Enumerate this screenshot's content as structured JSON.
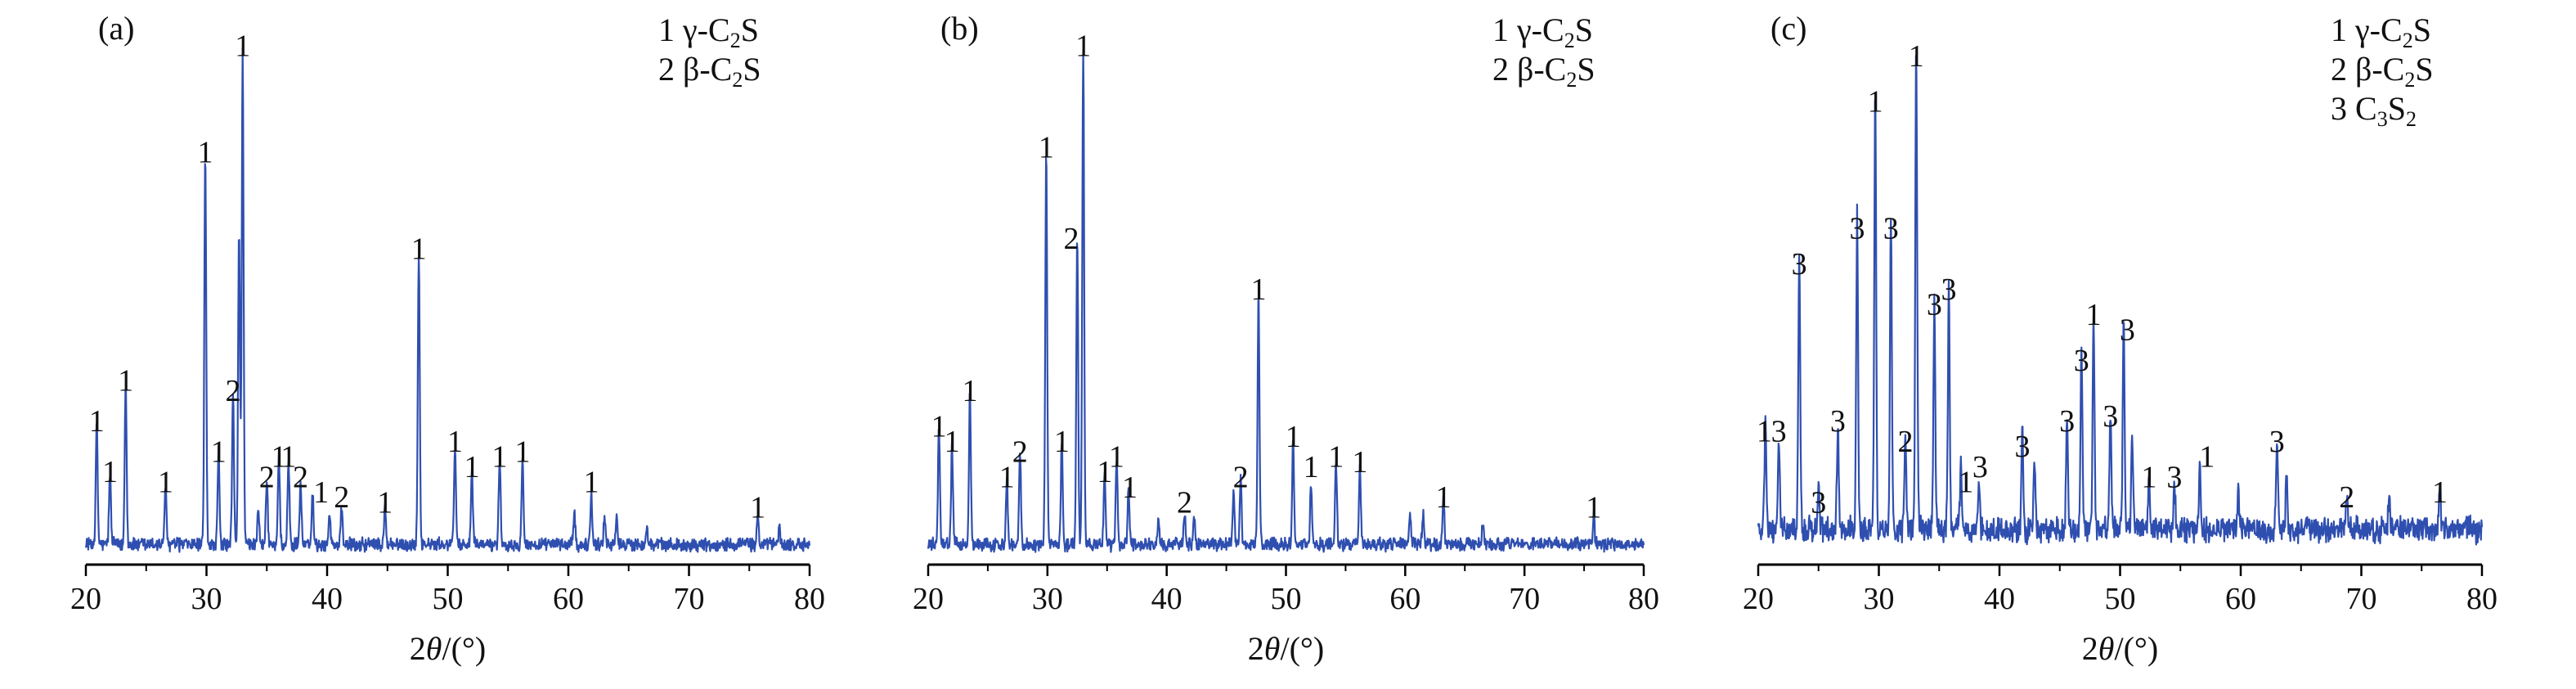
{
  "chart_data": [
    {
      "type": "line",
      "panel_label": "(a)",
      "xlabel_prefix": "2",
      "xlabel_theta": "θ",
      "xlabel_suffix": "/(°)",
      "xlim": [
        20,
        80
      ],
      "xticks": [
        "20",
        "30",
        "40",
        "50",
        "60",
        "70",
        "80"
      ],
      "legend": [
        {
          "num": "1",
          "text": "γ-C",
          "sub": "2",
          "tail": "S"
        },
        {
          "num": "2",
          "text": "β-C",
          "sub": "2",
          "tail": "S"
        }
      ],
      "color": "#2f4fb0",
      "baseline": 0.035,
      "noise": 0.018,
      "peaks": [
        {
          "x": 20.9,
          "h": 0.24
        },
        {
          "x": 22.0,
          "h": 0.14
        },
        {
          "x": 23.3,
          "h": 0.32
        },
        {
          "x": 26.6,
          "h": 0.12
        },
        {
          "x": 29.9,
          "h": 0.77
        },
        {
          "x": 31.0,
          "h": 0.18
        },
        {
          "x": 32.2,
          "h": 0.3
        },
        {
          "x": 32.7,
          "h": 0.62
        },
        {
          "x": 33.0,
          "h": 0.98
        },
        {
          "x": 34.3,
          "h": 0.08
        },
        {
          "x": 35.0,
          "h": 0.13
        },
        {
          "x": 36.0,
          "h": 0.17
        },
        {
          "x": 36.8,
          "h": 0.16
        },
        {
          "x": 37.8,
          "h": 0.12
        },
        {
          "x": 38.8,
          "h": 0.1
        },
        {
          "x": 40.2,
          "h": 0.06
        },
        {
          "x": 41.2,
          "h": 0.07
        },
        {
          "x": 44.8,
          "h": 0.07
        },
        {
          "x": 47.6,
          "h": 0.58
        },
        {
          "x": 50.6,
          "h": 0.2
        },
        {
          "x": 52.0,
          "h": 0.14
        },
        {
          "x": 54.3,
          "h": 0.17
        },
        {
          "x": 56.2,
          "h": 0.18
        },
        {
          "x": 60.5,
          "h": 0.06
        },
        {
          "x": 61.9,
          "h": 0.1
        },
        {
          "x": 63.0,
          "h": 0.06
        },
        {
          "x": 64.0,
          "h": 0.05
        },
        {
          "x": 66.5,
          "h": 0.04
        },
        {
          "x": 75.7,
          "h": 0.06
        },
        {
          "x": 77.5,
          "h": 0.03
        }
      ],
      "annotations": [
        {
          "x": 20.9,
          "h": 0.24,
          "label": "1"
        },
        {
          "x": 22.0,
          "h": 0.14,
          "label": "1"
        },
        {
          "x": 23.3,
          "h": 0.32,
          "label": "1"
        },
        {
          "x": 26.6,
          "h": 0.12,
          "label": "1"
        },
        {
          "x": 29.9,
          "h": 0.77,
          "label": "1"
        },
        {
          "x": 31.0,
          "h": 0.18,
          "label": "1"
        },
        {
          "x": 32.2,
          "h": 0.3,
          "label": "2"
        },
        {
          "x": 33.0,
          "h": 0.98,
          "label": "1"
        },
        {
          "x": 35.0,
          "h": 0.13,
          "label": "2"
        },
        {
          "x": 36.0,
          "h": 0.17,
          "label": "1"
        },
        {
          "x": 36.8,
          "h": 0.17,
          "label": "1"
        },
        {
          "x": 37.8,
          "h": 0.13,
          "label": "2"
        },
        {
          "x": 39.5,
          "h": 0.1,
          "label": "1"
        },
        {
          "x": 41.2,
          "h": 0.09,
          "label": "2"
        },
        {
          "x": 44.8,
          "h": 0.08,
          "label": "1"
        },
        {
          "x": 47.6,
          "h": 0.58,
          "label": "1"
        },
        {
          "x": 50.6,
          "h": 0.2,
          "label": "1"
        },
        {
          "x": 52.0,
          "h": 0.15,
          "label": "1"
        },
        {
          "x": 54.3,
          "h": 0.17,
          "label": "1"
        },
        {
          "x": 56.2,
          "h": 0.18,
          "label": "1"
        },
        {
          "x": 61.9,
          "h": 0.12,
          "label": "1"
        },
        {
          "x": 75.7,
          "h": 0.07,
          "label": "1"
        }
      ]
    },
    {
      "type": "line",
      "panel_label": "(b)",
      "xlabel_prefix": "2",
      "xlabel_theta": "θ",
      "xlabel_suffix": "/(°)",
      "xlim": [
        20,
        80
      ],
      "xticks": [
        "20",
        "30",
        "40",
        "50",
        "60",
        "70",
        "80"
      ],
      "legend": [
        {
          "num": "1",
          "text": "γ-C",
          "sub": "2",
          "tail": "S"
        },
        {
          "num": "2",
          "text": "β-C",
          "sub": "2",
          "tail": "S"
        }
      ],
      "color": "#2f4fb0",
      "baseline": 0.035,
      "noise": 0.018,
      "peaks": [
        {
          "x": 20.9,
          "h": 0.23
        },
        {
          "x": 22.0,
          "h": 0.2
        },
        {
          "x": 23.5,
          "h": 0.3
        },
        {
          "x": 26.6,
          "h": 0.13
        },
        {
          "x": 27.7,
          "h": 0.18
        },
        {
          "x": 29.9,
          "h": 0.78
        },
        {
          "x": 31.2,
          "h": 0.2
        },
        {
          "x": 32.5,
          "h": 0.6
        },
        {
          "x": 33.0,
          "h": 0.98
        },
        {
          "x": 34.8,
          "h": 0.14
        },
        {
          "x": 35.8,
          "h": 0.17
        },
        {
          "x": 36.8,
          "h": 0.11
        },
        {
          "x": 39.3,
          "h": 0.05
        },
        {
          "x": 41.5,
          "h": 0.06
        },
        {
          "x": 42.3,
          "h": 0.05
        },
        {
          "x": 45.6,
          "h": 0.1
        },
        {
          "x": 46.2,
          "h": 0.13
        },
        {
          "x": 47.7,
          "h": 0.5
        },
        {
          "x": 50.6,
          "h": 0.21
        },
        {
          "x": 52.1,
          "h": 0.12
        },
        {
          "x": 54.2,
          "h": 0.17
        },
        {
          "x": 56.2,
          "h": 0.15
        },
        {
          "x": 60.4,
          "h": 0.06
        },
        {
          "x": 61.5,
          "h": 0.06
        },
        {
          "x": 63.2,
          "h": 0.09
        },
        {
          "x": 66.5,
          "h": 0.04
        },
        {
          "x": 75.8,
          "h": 0.06
        }
      ],
      "annotations": [
        {
          "x": 20.9,
          "h": 0.23,
          "label": "1"
        },
        {
          "x": 22.0,
          "h": 0.2,
          "label": "1"
        },
        {
          "x": 23.5,
          "h": 0.3,
          "label": "1"
        },
        {
          "x": 26.6,
          "h": 0.13,
          "label": "1"
        },
        {
          "x": 27.7,
          "h": 0.18,
          "label": "2"
        },
        {
          "x": 29.9,
          "h": 0.78,
          "label": "1"
        },
        {
          "x": 31.2,
          "h": 0.2,
          "label": "1"
        },
        {
          "x": 32.0,
          "h": 0.6,
          "label": "2"
        },
        {
          "x": 33.0,
          "h": 0.98,
          "label": "1"
        },
        {
          "x": 34.8,
          "h": 0.14,
          "label": "1"
        },
        {
          "x": 35.8,
          "h": 0.17,
          "label": "1"
        },
        {
          "x": 36.9,
          "h": 0.11,
          "label": "1"
        },
        {
          "x": 41.5,
          "h": 0.08,
          "label": "2"
        },
        {
          "x": 46.2,
          "h": 0.13,
          "label": "2"
        },
        {
          "x": 47.7,
          "h": 0.5,
          "label": "1"
        },
        {
          "x": 50.6,
          "h": 0.21,
          "label": "1"
        },
        {
          "x": 52.1,
          "h": 0.15,
          "label": "1"
        },
        {
          "x": 54.2,
          "h": 0.17,
          "label": "1"
        },
        {
          "x": 56.2,
          "h": 0.16,
          "label": "1"
        },
        {
          "x": 63.2,
          "h": 0.09,
          "label": "1"
        },
        {
          "x": 75.8,
          "h": 0.07,
          "label": "1"
        }
      ]
    },
    {
      "type": "line",
      "panel_label": "(c)",
      "xlabel_prefix": "2",
      "xlabel_theta": "θ",
      "xlabel_suffix": "/(°)",
      "xlim": [
        20,
        80
      ],
      "xticks": [
        "20",
        "30",
        "40",
        "50",
        "60",
        "70",
        "80"
      ],
      "legend": [
        {
          "num": "1",
          "text": "γ-C",
          "sub": "2",
          "tail": "S"
        },
        {
          "num": "2",
          "text": "β-C",
          "sub": "2",
          "tail": "S"
        },
        {
          "num": "3",
          "text": "C",
          "sub": "3",
          "tail": "S",
          "sub2": "2"
        }
      ],
      "color": "#2f4fb0",
      "baseline": 0.06,
      "noise": 0.035,
      "peaks": [
        {
          "x": 20.6,
          "h": 0.22
        },
        {
          "x": 21.7,
          "h": 0.19
        },
        {
          "x": 23.4,
          "h": 0.55
        },
        {
          "x": 25.0,
          "h": 0.08
        },
        {
          "x": 26.6,
          "h": 0.21
        },
        {
          "x": 28.2,
          "h": 0.62
        },
        {
          "x": 29.7,
          "h": 0.87
        },
        {
          "x": 31.0,
          "h": 0.62
        },
        {
          "x": 32.2,
          "h": 0.2
        },
        {
          "x": 33.1,
          "h": 0.96
        },
        {
          "x": 34.6,
          "h": 0.44
        },
        {
          "x": 35.8,
          "h": 0.48
        },
        {
          "x": 36.8,
          "h": 0.12
        },
        {
          "x": 38.3,
          "h": 0.1
        },
        {
          "x": 41.9,
          "h": 0.19
        },
        {
          "x": 42.9,
          "h": 0.13
        },
        {
          "x": 45.6,
          "h": 0.22
        },
        {
          "x": 46.8,
          "h": 0.35
        },
        {
          "x": 47.8,
          "h": 0.42
        },
        {
          "x": 49.2,
          "h": 0.22
        },
        {
          "x": 50.3,
          "h": 0.4
        },
        {
          "x": 51.0,
          "h": 0.18
        },
        {
          "x": 52.4,
          "h": 0.1
        },
        {
          "x": 54.5,
          "h": 0.1
        },
        {
          "x": 56.6,
          "h": 0.13
        },
        {
          "x": 59.8,
          "h": 0.07
        },
        {
          "x": 63.0,
          "h": 0.19
        },
        {
          "x": 63.8,
          "h": 0.1
        },
        {
          "x": 68.8,
          "h": 0.07
        },
        {
          "x": 72.3,
          "h": 0.06
        },
        {
          "x": 76.5,
          "h": 0.09
        }
      ],
      "annotations": [
        {
          "x": 20.5,
          "h": 0.22,
          "label": "1"
        },
        {
          "x": 21.7,
          "h": 0.22,
          "label": "3"
        },
        {
          "x": 23.4,
          "h": 0.55,
          "label": "3"
        },
        {
          "x": 25.0,
          "h": 0.08,
          "label": "3"
        },
        {
          "x": 26.6,
          "h": 0.24,
          "label": "3"
        },
        {
          "x": 28.2,
          "h": 0.62,
          "label": "3"
        },
        {
          "x": 29.7,
          "h": 0.87,
          "label": "1"
        },
        {
          "x": 31.0,
          "h": 0.62,
          "label": "3"
        },
        {
          "x": 32.2,
          "h": 0.2,
          "label": "2"
        },
        {
          "x": 33.1,
          "h": 0.96,
          "label": "1"
        },
        {
          "x": 34.6,
          "h": 0.47,
          "label": "3"
        },
        {
          "x": 35.8,
          "h": 0.5,
          "label": "3"
        },
        {
          "x": 37.2,
          "h": 0.12,
          "label": "1"
        },
        {
          "x": 38.4,
          "h": 0.15,
          "label": "3"
        },
        {
          "x": 41.9,
          "h": 0.19,
          "label": "3"
        },
        {
          "x": 45.6,
          "h": 0.24,
          "label": "3"
        },
        {
          "x": 46.8,
          "h": 0.36,
          "label": "3"
        },
        {
          "x": 47.8,
          "h": 0.45,
          "label": "1"
        },
        {
          "x": 49.2,
          "h": 0.25,
          "label": "3"
        },
        {
          "x": 50.6,
          "h": 0.42,
          "label": "3"
        },
        {
          "x": 52.4,
          "h": 0.13,
          "label": "1"
        },
        {
          "x": 54.5,
          "h": 0.13,
          "label": "3"
        },
        {
          "x": 57.2,
          "h": 0.17,
          "label": "1"
        },
        {
          "x": 63.0,
          "h": 0.2,
          "label": "3"
        },
        {
          "x": 68.8,
          "h": 0.09,
          "label": "2"
        },
        {
          "x": 76.5,
          "h": 0.1,
          "label": "1"
        }
      ]
    }
  ]
}
